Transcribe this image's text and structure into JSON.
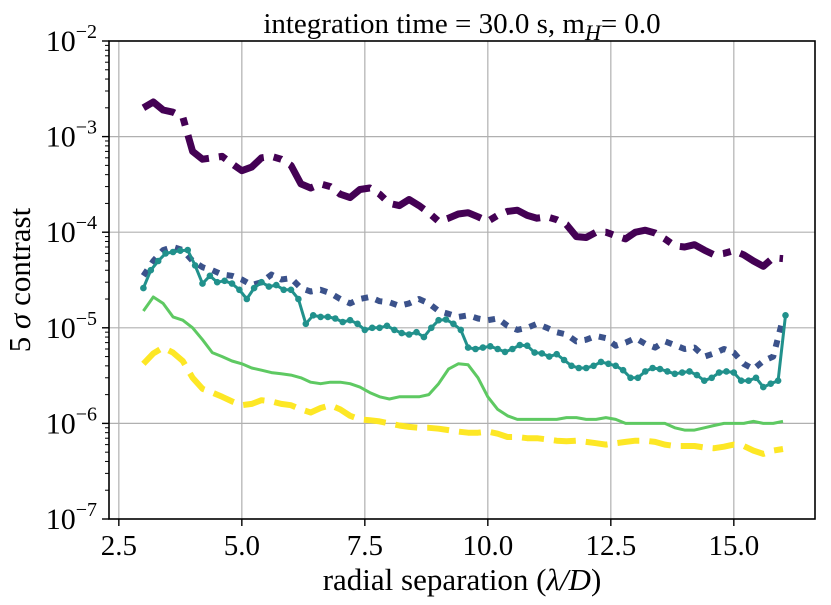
{
  "chart_data": {
    "type": "line",
    "title_prefix": "integration time = 30.0 s, m",
    "title_sub": "H",
    "title_suffix": "= 0.0",
    "xlabel_prefix": "radial separation (",
    "xlabel_math": "λ/D",
    "xlabel_suffix": ")",
    "ylabel_prefix": "5 ",
    "ylabel_math": "σ",
    "ylabel_suffix": " contrast",
    "xlim": [
      2.3,
      16.65
    ],
    "ylim_exponents": [
      -7,
      -2
    ],
    "yscale": "log",
    "grid": true,
    "x_ticks": [
      2.5,
      5.0,
      7.5,
      10.0,
      12.5,
      15.0
    ],
    "x_tick_labels": [
      "2.5",
      "5.0",
      "7.5",
      "10.0",
      "12.5",
      "15.0"
    ],
    "y_tick_exponents": [
      -7,
      -6,
      -5,
      -4,
      -3,
      -2
    ],
    "y_tick_base": "10",
    "y_tick_exp_labels": [
      "−7",
      "−6",
      "−5",
      "−4",
      "−3",
      "−2"
    ],
    "series": [
      {
        "color": "#440154",
        "style": "dashdot",
        "width": 7,
        "x": [
          3.0,
          3.2,
          3.4,
          3.6,
          3.8,
          4.0,
          4.2,
          4.4,
          4.6,
          4.8,
          5.0,
          5.2,
          5.4,
          5.6,
          5.8,
          6.0,
          6.2,
          6.4,
          6.6,
          6.8,
          7.0,
          7.2,
          7.4,
          7.6,
          7.8,
          8.0,
          8.2,
          8.4,
          8.6,
          8.8,
          9.0,
          9.2,
          9.4,
          9.6,
          9.8,
          10.0,
          10.2,
          10.4,
          10.6,
          10.8,
          11.0,
          11.2,
          11.4,
          11.6,
          11.8,
          12.0,
          12.2,
          12.4,
          12.6,
          12.8,
          13.0,
          13.2,
          13.4,
          13.6,
          13.8,
          14.0,
          14.2,
          14.4,
          14.6,
          14.8,
          15.0,
          15.2,
          15.4,
          15.6,
          15.8,
          16.0
        ],
        "y": [
          0.002,
          0.0023,
          0.0019,
          0.0018,
          0.0016,
          0.0007,
          0.00058,
          0.0006,
          0.00062,
          0.00052,
          0.00044,
          0.00048,
          0.0006,
          0.00062,
          0.00058,
          0.0005,
          0.00032,
          0.00029,
          0.00032,
          0.0003,
          0.00025,
          0.00023,
          0.00028,
          0.00029,
          0.00025,
          0.0002,
          0.00019,
          0.00022,
          0.00019,
          0.00016,
          0.00013,
          0.00014,
          0.000155,
          0.00016,
          0.000145,
          0.00013,
          0.00015,
          0.000165,
          0.00017,
          0.00015,
          0.00014,
          0.000145,
          0.000135,
          0.00012,
          9e-05,
          8.8e-05,
          0.0001,
          0.0001,
          9.2e-05,
          8.5e-05,
          0.0001,
          0.000105,
          9.8e-05,
          8.5e-05,
          7.2e-05,
          7e-05,
          7.4e-05,
          6.5e-05,
          5.8e-05,
          6e-05,
          6.4e-05,
          5.8e-05,
          5e-05,
          4.4e-05,
          5.4e-05,
          5.3e-05
        ]
      },
      {
        "color": "#3b528b",
        "style": "dotted",
        "width": 6,
        "x": [
          3.0,
          3.2,
          3.4,
          3.6,
          3.8,
          4.0,
          4.2,
          4.4,
          4.6,
          4.8,
          5.0,
          5.2,
          5.4,
          5.6,
          5.8,
          6.0,
          6.2,
          6.4,
          6.6,
          6.8,
          7.0,
          7.2,
          7.4,
          7.6,
          7.8,
          8.0,
          8.2,
          8.4,
          8.6,
          8.8,
          9.0,
          9.2,
          9.4,
          9.6,
          9.8,
          10.0,
          10.2,
          10.4,
          10.6,
          10.8,
          11.0,
          11.2,
          11.4,
          11.6,
          11.8,
          12.0,
          12.2,
          12.4,
          12.6,
          12.8,
          13.0,
          13.2,
          13.4,
          13.6,
          13.8,
          14.0,
          14.2,
          14.4,
          14.6,
          14.8,
          15.0,
          15.2,
          15.4,
          15.6,
          15.8,
          16.0
        ],
        "y": [
          3.5e-05,
          5e-05,
          6.5e-05,
          7e-05,
          6.5e-05,
          5e-05,
          4.3e-05,
          4e-05,
          3.6e-05,
          3.5e-05,
          3.2e-05,
          2.8e-05,
          3e-05,
          3.6e-05,
          3.2e-05,
          3.3e-05,
          2.6e-05,
          2.4e-05,
          2.5e-05,
          2.3e-05,
          2e-05,
          1.8e-05,
          2e-05,
          2.1e-05,
          1.9e-05,
          1.85e-05,
          1.7e-05,
          1.8e-05,
          2e-05,
          1.8e-05,
          1.5e-05,
          1.4e-05,
          1.3e-05,
          1.35e-05,
          1.25e-05,
          1.2e-05,
          1.25e-05,
          1.05e-05,
          9.5e-06,
          1e-05,
          1.1e-05,
          1e-05,
          9e-06,
          8.5e-06,
          7.2e-06,
          7.5e-06,
          8.2e-06,
          7.8e-06,
          6.5e-06,
          7e-06,
          7.8e-06,
          6.8e-06,
          6.2e-06,
          7.2e-06,
          6.6e-06,
          6e-06,
          6.2e-06,
          5e-06,
          5.4e-06,
          6e-06,
          5.5e-06,
          4.2e-06,
          3.7e-06,
          4.5e-06,
          5e-06,
          1.25e-05
        ]
      },
      {
        "color": "#21918c",
        "style": "solid-markers",
        "width": 3,
        "x": [
          3.0,
          3.15,
          3.3,
          3.45,
          3.6,
          3.75,
          3.9,
          4.05,
          4.2,
          4.35,
          4.5,
          4.65,
          4.8,
          4.95,
          5.1,
          5.25,
          5.4,
          5.55,
          5.7,
          5.85,
          6.0,
          6.15,
          6.3,
          6.45,
          6.6,
          6.75,
          6.9,
          7.05,
          7.2,
          7.35,
          7.5,
          7.65,
          7.8,
          7.95,
          8.1,
          8.25,
          8.4,
          8.55,
          8.7,
          8.85,
          9.0,
          9.15,
          9.3,
          9.45,
          9.6,
          9.75,
          9.9,
          10.05,
          10.2,
          10.35,
          10.5,
          10.65,
          10.8,
          10.95,
          11.1,
          11.25,
          11.4,
          11.55,
          11.7,
          11.85,
          12.0,
          12.15,
          12.3,
          12.45,
          12.6,
          12.75,
          12.9,
          13.05,
          13.2,
          13.35,
          13.5,
          13.65,
          13.8,
          13.95,
          14.1,
          14.25,
          14.4,
          14.55,
          14.7,
          14.85,
          15.0,
          15.15,
          15.3,
          15.45,
          15.6,
          15.75,
          15.9,
          16.05
        ],
        "y": [
          2.6e-05,
          4e-05,
          5e-05,
          6e-05,
          6.2e-05,
          6.4e-05,
          6.5e-05,
          4.5e-05,
          2.9e-05,
          3.5e-05,
          3e-05,
          3.1e-05,
          2.9e-05,
          2.5e-05,
          2e-05,
          2.6e-05,
          3e-05,
          2.7e-05,
          2.8e-05,
          2.5e-05,
          2.5e-05,
          2e-05,
          1.1e-05,
          1.35e-05,
          1.3e-05,
          1.3e-05,
          1.25e-05,
          1.15e-05,
          1.2e-05,
          1.1e-05,
          9.5e-06,
          1e-05,
          1e-05,
          1.05e-05,
          9.5e-06,
          8.8e-06,
          8.5e-06,
          9e-06,
          8e-06,
          1e-05,
          1.2e-05,
          1.22e-05,
          1.1e-05,
          9.5e-06,
          6.2e-06,
          6e-06,
          6.2e-06,
          6.4e-06,
          6e-06,
          5.6e-06,
          6e-06,
          6.6e-06,
          6.5e-06,
          5.5e-06,
          5.4e-06,
          5e-06,
          5.3e-06,
          4.6e-06,
          4e-06,
          3.8e-06,
          3.8e-06,
          4e-06,
          4.4e-06,
          4.2e-06,
          4e-06,
          3.6e-06,
          3e-06,
          3e-06,
          3.5e-06,
          3.8e-06,
          3.7e-06,
          3.5e-06,
          3.3e-06,
          3.4e-06,
          3.5e-06,
          3.2e-06,
          2.8e-06,
          3e-06,
          3.4e-06,
          3.5e-06,
          3.4e-06,
          2.8e-06,
          2.8e-06,
          3e-06,
          2.4e-06,
          2.6e-06,
          2.8e-06,
          1.35e-05
        ]
      },
      {
        "color": "#5ec962",
        "style": "solid",
        "width": 3,
        "x": [
          3.0,
          3.2,
          3.4,
          3.6,
          3.8,
          4.0,
          4.2,
          4.4,
          4.6,
          4.8,
          5.0,
          5.2,
          5.4,
          5.6,
          5.8,
          6.0,
          6.2,
          6.4,
          6.6,
          6.8,
          7.0,
          7.2,
          7.4,
          7.6,
          7.8,
          8.0,
          8.2,
          8.4,
          8.6,
          8.8,
          9.0,
          9.2,
          9.4,
          9.6,
          9.8,
          10.0,
          10.2,
          10.4,
          10.6,
          10.8,
          11.0,
          11.2,
          11.4,
          11.6,
          11.8,
          12.0,
          12.2,
          12.4,
          12.6,
          12.8,
          13.0,
          13.2,
          13.4,
          13.6,
          13.8,
          14.0,
          14.2,
          14.4,
          14.6,
          14.8,
          15.0,
          15.2,
          15.4,
          15.6,
          15.8,
          16.0
        ],
        "y": [
          1.5e-05,
          2.1e-05,
          1.8e-05,
          1.3e-05,
          1.2e-05,
          1e-05,
          7.5e-06,
          5.5e-06,
          5e-06,
          4.5e-06,
          4.2e-06,
          3.8e-06,
          3.6e-06,
          3.4e-06,
          3.3e-06,
          3.2e-06,
          3e-06,
          2.7e-06,
          2.6e-06,
          2.7e-06,
          2.7e-06,
          2.6e-06,
          2.4e-06,
          2.1e-06,
          1.9e-06,
          1.8e-06,
          1.9e-06,
          1.9e-06,
          1.9e-06,
          2e-06,
          2.6e-06,
          3.7e-06,
          4.2e-06,
          4.1e-06,
          3e-06,
          1.9e-06,
          1.4e-06,
          1.2e-06,
          1.1e-06,
          1.1e-06,
          1.1e-06,
          1.1e-06,
          1.1e-06,
          1.15e-06,
          1.15e-06,
          1.1e-06,
          1.1e-06,
          1.15e-06,
          1.1e-06,
          1e-06,
          1e-06,
          1e-06,
          1e-06,
          1e-06,
          9e-07,
          8.5e-07,
          8.5e-07,
          9e-07,
          9.5e-07,
          1e-06,
          1e-06,
          1e-06,
          1.05e-06,
          1e-06,
          1e-06,
          1.05e-06
        ]
      },
      {
        "color": "#fde725",
        "style": "dashed",
        "width": 6,
        "x": [
          3.0,
          3.2,
          3.4,
          3.6,
          3.8,
          4.0,
          4.2,
          4.4,
          4.6,
          4.8,
          5.0,
          5.2,
          5.4,
          5.6,
          5.8,
          6.0,
          6.2,
          6.4,
          6.6,
          6.8,
          7.0,
          7.2,
          7.4,
          7.6,
          7.8,
          8.0,
          8.2,
          8.4,
          8.6,
          8.8,
          9.0,
          9.2,
          9.4,
          9.6,
          9.8,
          10.0,
          10.2,
          10.4,
          10.6,
          10.8,
          11.0,
          11.2,
          11.4,
          11.6,
          11.8,
          12.0,
          12.2,
          12.4,
          12.6,
          12.8,
          13.0,
          13.2,
          13.4,
          13.6,
          13.8,
          14.0,
          14.2,
          14.4,
          14.6,
          14.8,
          15.0,
          15.2,
          15.4,
          15.6,
          15.8,
          16.0
        ],
        "y": [
          4.2e-06,
          5.4e-06,
          6.2e-06,
          5.5e-06,
          4.5e-06,
          3e-06,
          2.3e-06,
          2.1e-06,
          1.9e-06,
          1.7e-06,
          1.55e-06,
          1.6e-06,
          1.75e-06,
          1.7e-06,
          1.6e-06,
          1.55e-06,
          1.4e-06,
          1.3e-06,
          1.45e-06,
          1.55e-06,
          1.4e-06,
          1.2e-06,
          1.1e-06,
          1.08e-06,
          1.05e-06,
          1e-06,
          9.5e-07,
          9.2e-07,
          9e-07,
          9e-07,
          8.8e-07,
          8.5e-07,
          8.2e-07,
          8e-07,
          8e-07,
          8.2e-07,
          7.8e-07,
          7.2e-07,
          7.2e-07,
          7e-07,
          7e-07,
          6.8e-07,
          6.6e-07,
          6.5e-07,
          6.6e-07,
          6.4e-07,
          6.2e-07,
          6e-07,
          6.2e-07,
          6.4e-07,
          6.6e-07,
          6.6e-07,
          6.4e-07,
          6e-07,
          5.8e-07,
          5.8e-07,
          5.8e-07,
          5.6e-07,
          5.5e-07,
          5.7e-07,
          6e-07,
          5.8e-07,
          5.2e-07,
          4.8e-07,
          5.2e-07,
          5.4e-07
        ]
      }
    ]
  }
}
